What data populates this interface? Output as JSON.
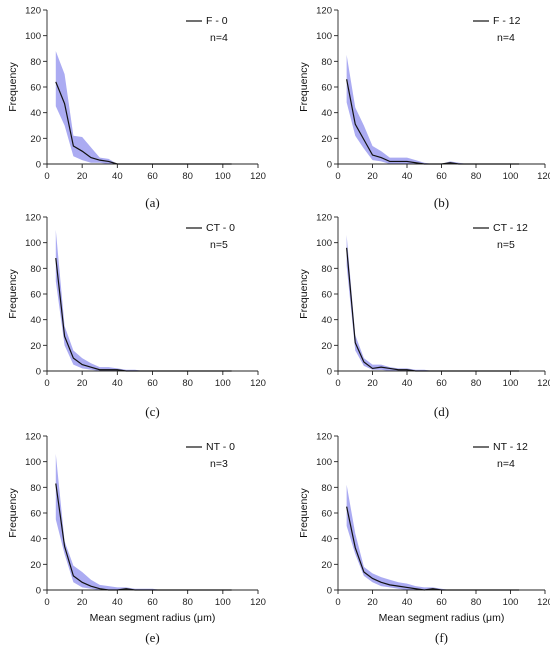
{
  "chart_data": [
    {
      "type": "line",
      "caption": "(a)",
      "ylabel": "Frequency",
      "xlabel": "",
      "series_name": "F - 0",
      "n_label": "n=4",
      "xlim": [
        0,
        120
      ],
      "ylim": [
        0,
        120
      ],
      "xticks": [
        0,
        20,
        40,
        60,
        80,
        100,
        120
      ],
      "yticks": [
        0,
        20,
        40,
        60,
        80,
        100,
        120
      ],
      "grid": false,
      "legend_position": "top-right",
      "band_color": "#9c9cf0",
      "x": [
        5,
        10,
        15,
        20,
        25,
        30,
        35,
        40,
        45,
        50,
        55,
        60,
        65,
        70,
        75,
        80,
        85,
        90,
        95,
        100,
        105
      ],
      "y": [
        64,
        47,
        14,
        10,
        5,
        3,
        2,
        0,
        0,
        0,
        0,
        0,
        0,
        0,
        0,
        0,
        0,
        0,
        0,
        0,
        0
      ],
      "upper": [
        88,
        70,
        22,
        21,
        13,
        5,
        4,
        0,
        0,
        0,
        0,
        0,
        0,
        0,
        0,
        0,
        0,
        0,
        0,
        0,
        0
      ],
      "lower": [
        45,
        30,
        6,
        3,
        1,
        1,
        0,
        0,
        0,
        0,
        0,
        0,
        0,
        0,
        0,
        0,
        0,
        0,
        0,
        0,
        0
      ]
    },
    {
      "type": "line",
      "caption": "(b)",
      "ylabel": "Frequency",
      "xlabel": "",
      "series_name": "F - 12",
      "n_label": "n=4",
      "xlim": [
        0,
        120
      ],
      "ylim": [
        0,
        120
      ],
      "xticks": [
        0,
        20,
        40,
        60,
        80,
        100,
        120
      ],
      "yticks": [
        0,
        20,
        40,
        60,
        80,
        100,
        120
      ],
      "grid": false,
      "legend_position": "top-right",
      "band_color": "#9c9cf0",
      "x": [
        5,
        10,
        15,
        20,
        25,
        30,
        35,
        40,
        45,
        50,
        55,
        60,
        65,
        70,
        75,
        80,
        85,
        90,
        95,
        100,
        105
      ],
      "y": [
        66,
        31,
        19,
        7,
        5,
        2,
        2,
        2,
        1,
        0,
        0,
        0,
        1,
        0,
        0,
        0,
        0,
        0,
        0,
        0,
        0
      ],
      "upper": [
        85,
        44,
        30,
        14,
        10,
        5,
        5,
        5,
        3,
        1,
        0,
        0,
        2,
        1,
        0,
        0,
        0,
        0,
        0,
        0,
        0
      ],
      "lower": [
        48,
        22,
        12,
        3,
        2,
        0,
        0,
        0,
        0,
        0,
        0,
        0,
        0,
        0,
        0,
        0,
        0,
        0,
        0,
        0,
        0
      ]
    },
    {
      "type": "line",
      "caption": "(c)",
      "ylabel": "Frequency",
      "xlabel": "",
      "series_name": "CT - 0",
      "n_label": "n=5",
      "xlim": [
        0,
        120
      ],
      "ylim": [
        0,
        120
      ],
      "xticks": [
        0,
        20,
        40,
        60,
        80,
        100,
        120
      ],
      "yticks": [
        0,
        20,
        40,
        60,
        80,
        100,
        120
      ],
      "grid": false,
      "legend_position": "top-right",
      "band_color": "#9c9cf0",
      "x": [
        5,
        10,
        15,
        20,
        25,
        30,
        35,
        40,
        45,
        50,
        55,
        60,
        65,
        70,
        75,
        80,
        85,
        90,
        95,
        100,
        105
      ],
      "y": [
        88,
        27,
        10,
        5,
        3,
        1,
        1,
        1,
        0,
        0,
        0,
        0,
        0,
        0,
        0,
        0,
        0,
        0,
        0,
        0,
        0
      ],
      "upper": [
        110,
        35,
        16,
        10,
        6,
        3,
        3,
        2,
        1,
        1,
        0,
        0,
        0,
        0,
        0,
        0,
        0,
        0,
        0,
        0,
        0
      ],
      "lower": [
        70,
        20,
        5,
        2,
        1,
        0,
        0,
        0,
        0,
        0,
        0,
        0,
        0,
        0,
        0,
        0,
        0,
        0,
        0,
        0,
        0
      ]
    },
    {
      "type": "line",
      "caption": "(d)",
      "ylabel": "Frequency",
      "xlabel": "",
      "series_name": "CT - 12",
      "n_label": "n=5",
      "xlim": [
        0,
        120
      ],
      "ylim": [
        0,
        120
      ],
      "xticks": [
        0,
        20,
        40,
        60,
        80,
        100,
        120
      ],
      "yticks": [
        0,
        20,
        40,
        60,
        80,
        100,
        120
      ],
      "grid": false,
      "legend_position": "top-right",
      "band_color": "#9c9cf0",
      "x": [
        5,
        10,
        15,
        20,
        25,
        30,
        35,
        40,
        45,
        50,
        55,
        60,
        65,
        70,
        75,
        80,
        85,
        90,
        95,
        100,
        105
      ],
      "y": [
        96,
        22,
        7,
        2,
        3,
        2,
        1,
        1,
        0,
        0,
        0,
        0,
        0,
        0,
        0,
        0,
        0,
        0,
        0,
        0,
        0
      ],
      "upper": [
        106,
        28,
        10,
        5,
        5,
        3,
        2,
        2,
        1,
        1,
        0,
        0,
        0,
        0,
        0,
        0,
        0,
        0,
        0,
        0,
        0
      ],
      "lower": [
        82,
        16,
        4,
        1,
        1,
        0,
        0,
        0,
        0,
        0,
        0,
        0,
        0,
        0,
        0,
        0,
        0,
        0,
        0,
        0,
        0
      ]
    },
    {
      "type": "line",
      "caption": "(e)",
      "ylabel": "Frequency",
      "xlabel": "Mean segment radius (μm)",
      "series_name": "NT - 0",
      "n_label": "n=3",
      "xlim": [
        0,
        120
      ],
      "ylim": [
        0,
        120
      ],
      "xticks": [
        0,
        20,
        40,
        60,
        80,
        100,
        120
      ],
      "yticks": [
        0,
        20,
        40,
        60,
        80,
        100,
        120
      ],
      "grid": false,
      "legend_position": "top-right",
      "band_color": "#9c9cf0",
      "x": [
        5,
        10,
        15,
        20,
        25,
        30,
        35,
        40,
        45,
        50,
        55,
        60,
        65,
        70,
        75,
        80,
        85,
        90,
        95,
        100,
        105
      ],
      "y": [
        83,
        34,
        11,
        6,
        3,
        1,
        0,
        0,
        1,
        0,
        0,
        0,
        0,
        0,
        0,
        0,
        0,
        0,
        0,
        0,
        0
      ],
      "upper": [
        106,
        38,
        19,
        14,
        8,
        4,
        3,
        2,
        2,
        1,
        1,
        1,
        0,
        0,
        0,
        0,
        0,
        0,
        0,
        0,
        0
      ],
      "lower": [
        55,
        28,
        6,
        2,
        1,
        0,
        0,
        0,
        0,
        0,
        0,
        0,
        0,
        0,
        0,
        0,
        0,
        0,
        0,
        0,
        0
      ]
    },
    {
      "type": "line",
      "caption": "(f)",
      "ylabel": "Frequency",
      "xlabel": "Mean segment radius (μm)",
      "series_name": "NT - 12",
      "n_label": "n=4",
      "xlim": [
        0,
        120
      ],
      "ylim": [
        0,
        120
      ],
      "xticks": [
        0,
        20,
        40,
        60,
        80,
        100,
        120
      ],
      "yticks": [
        0,
        20,
        40,
        60,
        80,
        100,
        120
      ],
      "grid": false,
      "legend_position": "top-right",
      "band_color": "#9c9cf0",
      "x": [
        5,
        10,
        15,
        20,
        25,
        30,
        35,
        40,
        45,
        50,
        55,
        60,
        65,
        70,
        75,
        80,
        85,
        90,
        95,
        100,
        105
      ],
      "y": [
        65,
        33,
        14,
        9,
        6,
        4,
        3,
        2,
        1,
        0,
        1,
        0,
        0,
        0,
        0,
        0,
        0,
        0,
        0,
        0,
        0
      ],
      "upper": [
        82,
        44,
        18,
        13,
        10,
        8,
        6,
        5,
        3,
        2,
        2,
        1,
        0,
        0,
        0,
        0,
        0,
        0,
        0,
        0,
        0
      ],
      "lower": [
        50,
        28,
        11,
        6,
        3,
        2,
        1,
        0,
        0,
        0,
        0,
        0,
        0,
        0,
        0,
        0,
        0,
        0,
        0,
        0,
        0
      ]
    }
  ]
}
